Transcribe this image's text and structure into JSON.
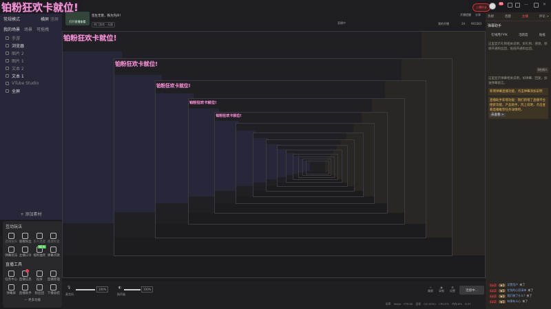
{
  "overlay_text": "铂粉狂欢卡就位!",
  "left": {
    "mode": "常规模式",
    "orient_h": "横屏",
    "orient_v": "竖屏",
    "tabs": [
      "我的场景",
      "场景",
      "可拖拽"
    ],
    "scenes": [
      {
        "label": "手游",
        "on": false
      },
      {
        "label": "浏览器",
        "on": true
      },
      {
        "label": "图片 2",
        "on": false
      },
      {
        "label": "图片 1",
        "on": false
      },
      {
        "label": "文本 2",
        "on": false
      },
      {
        "label": "文本 1",
        "on": true
      },
      {
        "label": "VTube Studio",
        "on": false
      },
      {
        "label": "全屏",
        "on": true
      }
    ],
    "add_label": "+ 添加素材"
  },
  "interact": {
    "title": "互动玩法",
    "items": [
      {
        "label": "连线观众",
        "dim": true
      },
      {
        "label": "观看粉丝"
      },
      {
        "label": "多人连麦",
        "dim": true
      },
      {
        "label": "邀请好友",
        "dim": true
      },
      {
        "label": "弹幕玩法"
      },
      {
        "label": "主播口令"
      },
      {
        "label": "福利抽奖",
        "badge": "NEW"
      },
      {
        "label": "弹幕点歌"
      }
    ],
    "tools_title": "直播工具",
    "tools": [
      {
        "label": "任务中心"
      },
      {
        "label": "直播信息",
        "dot": true
      },
      {
        "label": "投屏"
      },
      {
        "label": "直播管理"
      },
      {
        "label": "弹幕屏"
      },
      {
        "label": "直播助手"
      },
      {
        "label": "粉丝团"
      },
      {
        "label": "下播总结"
      }
    ],
    "more": "— 更多功能"
  },
  "top": {
    "thumb_label": "打开直播查看",
    "title": "签生无害，铁为内声！",
    "category": "热门游戏 - 无限",
    "live_label": "直播中",
    "timer_btn": "上播时长",
    "remind": "开播提醒",
    "share": "分享",
    "my_live": "我的开播",
    "likes": "24",
    "hearts": "903383",
    "msg_badge": "99"
  },
  "right": {
    "tabs": [
      "热榜",
      "话题",
      "主播",
      "评论 >"
    ],
    "assistant": "弹幕助手",
    "assist_tabs": [
      "在线用户PK",
      "活跃度",
      "贴纸"
    ],
    "messages": [
      "这里显示礼物相关说明，如礼物、感谢，感谢开通粉丝团，贴纸开通粉丝团。",
      "这里显示弹幕相关说明，如弹幕、回复，加油弹幕留言。"
    ],
    "highlights": [
      "新增弹幕直播功能，点击弹幕添加说明",
      "直播助手新增功能：我们新增了直播平台搜索功能，产品助手，风上说明，点击查看直播推荐任务详情吧。"
    ],
    "highlight_link": "去查看 >",
    "online_tag": "0在线人"
  },
  "chat": [
    {
      "lv": "Lv.2",
      "fan": "★1",
      "name": "设置用户",
      "tag": "来了"
    },
    {
      "lv": "Lv.2",
      "fan": "★1",
      "name": "在别的心愿清单",
      "tag": "来了"
    },
    {
      "lv": "Lv.2",
      "fan": "★1",
      "name": "我们做了什么?",
      "tag": "来了"
    },
    {
      "lv": "Lv.2",
      "fan": "★1",
      "name": "有情有义心",
      "tag": "来了"
    }
  ],
  "bottom": {
    "mic": "麦克风",
    "speaker": "扬声器",
    "mic_pct": "100%",
    "spk_pct": "100%",
    "mic_level": 1.0,
    "spk_level": 1.0,
    "beauty": "美颜",
    "record": "录制",
    "settings": "设置",
    "connect": "连接中...",
    "status": "码率 0kb/s  FPS:60  丢帧 0(0.00%)  CPU:5%  内存:8%  8:37"
  }
}
